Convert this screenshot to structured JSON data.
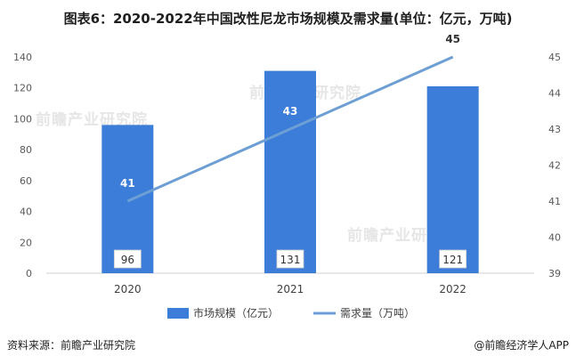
{
  "chart_data": {
    "type": "bar",
    "title": "图表6：2020-2022年中国改性尼龙市场规模及需求量(单位：亿元，万吨)",
    "categories": [
      "2020",
      "2021",
      "2022"
    ],
    "series": [
      {
        "name": "市场规模（亿元）",
        "type": "bar",
        "axis": "left",
        "values": [
          96,
          131,
          121
        ],
        "color": "#3b7dd8"
      },
      {
        "name": "需求量（万吨）",
        "type": "line",
        "axis": "right",
        "values": [
          41,
          43,
          45
        ],
        "color": "#6e9fd4"
      }
    ],
    "y_left": {
      "min": 0,
      "max": 140,
      "ticks": [
        0,
        20,
        40,
        60,
        80,
        100,
        120,
        140
      ]
    },
    "y_right": {
      "min": 39,
      "max": 45,
      "ticks": [
        39,
        40,
        41,
        42,
        43,
        44,
        45
      ]
    },
    "legend_position": "bottom",
    "grid": false
  },
  "footer": {
    "source": "资料来源：前瞻产业研究院",
    "brand": "@前瞻经济学人APP"
  },
  "watermark": "前瞻产业研究院"
}
